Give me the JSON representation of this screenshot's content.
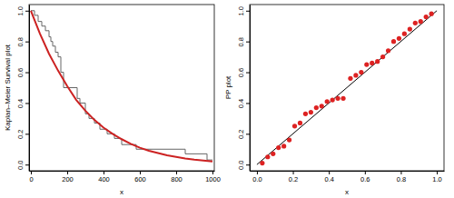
{
  "chart_data": [
    {
      "type": "line",
      "y_label": "Kaplan–Meier Survival plot",
      "x_label": "x",
      "xlim": [
        -10,
        1010
      ],
      "ylim": [
        -0.04,
        1.04
      ],
      "xticks": [
        0,
        200,
        400,
        600,
        800,
        1000
      ],
      "yticks": [
        {
          "value": 0,
          "label": "0.0"
        },
        0.2,
        0.4,
        0.6,
        0.8,
        {
          "value": 1,
          "label": "1.0"
        }
      ],
      "series": [
        {
          "type": "line",
          "line_style": "step",
          "color": "#666666",
          "x": [
            0,
            20,
            40,
            60,
            80,
            100,
            110,
            120,
            135,
            150,
            165,
            180,
            255,
            270,
            300,
            320,
            350,
            380,
            420,
            460,
            500,
            580,
            850,
            970,
            1000
          ],
          "values": [
            1,
            0.97,
            0.93,
            0.9,
            0.87,
            0.83,
            0.8,
            0.77,
            0.73,
            0.7,
            0.6,
            0.5,
            0.43,
            0.4,
            0.33,
            0.3,
            0.27,
            0.23,
            0.2,
            0.17,
            0.13,
            0.1,
            0.07,
            0.03,
            0.03
          ]
        },
        {
          "type": "line",
          "line_style": "solid",
          "color": "#cc2222",
          "x": [
            0,
            50,
            100,
            150,
            200,
            250,
            300,
            350,
            400,
            450,
            500,
            550,
            600,
            650,
            700,
            750,
            800,
            850,
            900,
            950,
            1000
          ],
          "values": [
            1,
            0.85,
            0.72,
            0.61,
            0.51,
            0.42,
            0.35,
            0.29,
            0.24,
            0.2,
            0.165,
            0.135,
            0.11,
            0.09,
            0.075,
            0.06,
            0.05,
            0.04,
            0.032,
            0.026,
            0.02
          ]
        }
      ]
    },
    {
      "type": "scatter",
      "y_label": "PP plot",
      "x_label": "x",
      "xlim": [
        -0.04,
        1.04
      ],
      "ylim": [
        -0.04,
        1.04
      ],
      "xticks": [
        {
          "value": 0,
          "label": "0.0"
        },
        0.2,
        0.4,
        0.6,
        0.8,
        {
          "value": 1,
          "label": "1.0"
        }
      ],
      "yticks": [
        {
          "value": 0,
          "label": "0.0"
        },
        0.2,
        0.4,
        0.6,
        0.8,
        {
          "value": 1,
          "label": "1.0"
        }
      ],
      "series": [
        {
          "type": "line",
          "line_style": "solid",
          "color": "#000000",
          "x": [
            0,
            1
          ],
          "values": [
            0,
            1
          ]
        },
        {
          "type": "scatter",
          "marker": "circle",
          "color": "#dd2222",
          "x": [
            0.03,
            0.06,
            0.09,
            0.12,
            0.15,
            0.18,
            0.21,
            0.24,
            0.27,
            0.3,
            0.33,
            0.36,
            0.39,
            0.42,
            0.45,
            0.48,
            0.52,
            0.55,
            0.58,
            0.61,
            0.64,
            0.67,
            0.7,
            0.73,
            0.76,
            0.79,
            0.82,
            0.85,
            0.88,
            0.91,
            0.94,
            0.97
          ],
          "values": [
            0.01,
            0.05,
            0.07,
            0.11,
            0.12,
            0.16,
            0.25,
            0.27,
            0.33,
            0.34,
            0.37,
            0.38,
            0.41,
            0.42,
            0.43,
            0.43,
            0.56,
            0.58,
            0.6,
            0.65,
            0.66,
            0.67,
            0.7,
            0.74,
            0.8,
            0.82,
            0.85,
            0.88,
            0.92,
            0.93,
            0.96,
            0.98
          ]
        }
      ]
    }
  ]
}
